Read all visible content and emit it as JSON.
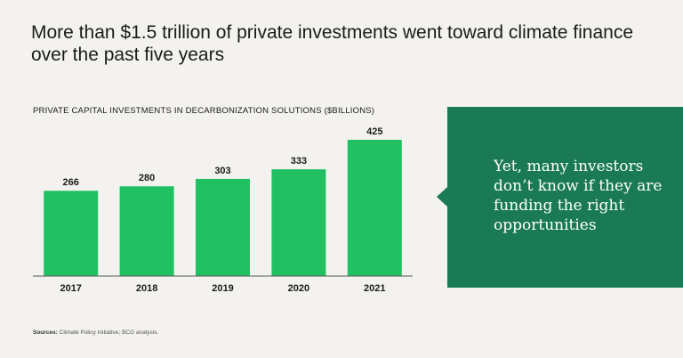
{
  "headline": "More than $1.5 trillion of private investments went toward climate finance over the past five years",
  "callout_text": "Yet, many investors don’t know if they are funding the right opportunities",
  "sources": {
    "label": "Sources:",
    "text": "Climate Policy Initiative; BCG analysis."
  },
  "colors": {
    "bar": "#21c063",
    "callout": "#1a7a56",
    "background": "#f4f2ef"
  },
  "chart_data": {
    "type": "bar",
    "title": "PRIVATE CAPITAL INVESTMENTS IN DECARBONIZATION SOLUTIONS ($BILLIONS)",
    "categories": [
      "2017",
      "2018",
      "2019",
      "2020",
      "2021"
    ],
    "values": [
      266,
      280,
      303,
      333,
      425
    ],
    "xlabel": "",
    "ylabel": "$ billions",
    "ylim": [
      0,
      425
    ],
    "grid": false,
    "legend": "none"
  }
}
